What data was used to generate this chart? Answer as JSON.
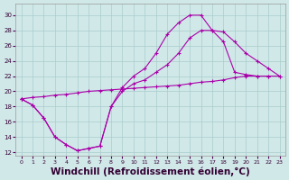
{
  "line1_x": [
    0,
    1,
    2,
    3,
    4,
    5,
    6,
    7,
    8,
    9,
    10,
    11,
    12,
    13,
    14,
    15,
    16,
    17,
    18,
    19,
    20,
    21,
    22,
    23
  ],
  "line1_y": [
    19.0,
    18.2,
    16.5,
    14.0,
    13.0,
    12.2,
    12.5,
    12.8,
    18.0,
    20.5,
    22.0,
    23.0,
    25.0,
    27.5,
    29.0,
    30.0,
    30.0,
    28.0,
    26.5,
    22.5,
    22.2,
    22.0,
    22.0,
    null
  ],
  "line2_x": [
    0,
    1,
    2,
    3,
    4,
    5,
    6,
    7,
    8,
    9,
    10,
    11,
    12,
    13,
    14,
    15,
    16,
    17,
    18,
    19,
    20,
    21,
    22,
    23
  ],
  "line2_y": [
    19.0,
    18.2,
    16.5,
    14.0,
    13.0,
    12.2,
    12.5,
    12.8,
    18.0,
    20.0,
    21.0,
    21.5,
    22.5,
    23.5,
    25.0,
    27.0,
    28.0,
    28.0,
    27.8,
    26.5,
    25.0,
    24.0,
    23.0,
    22.0
  ],
  "line3_x": [
    0,
    1,
    2,
    3,
    4,
    5,
    6,
    7,
    8,
    9,
    10,
    11,
    12,
    13,
    14,
    15,
    16,
    17,
    18,
    19,
    20,
    21,
    22,
    23
  ],
  "line3_y": [
    19.0,
    19.2,
    19.3,
    19.5,
    19.6,
    19.8,
    20.0,
    20.1,
    20.2,
    20.3,
    20.4,
    20.5,
    20.6,
    20.7,
    20.8,
    21.0,
    21.2,
    21.3,
    21.5,
    21.8,
    22.0,
    22.0,
    22.0,
    22.0
  ],
  "line_color": "#aa00aa",
  "bg_color": "#d0e8e8",
  "grid_color": "#aacccc",
  "xlabel": "Windchill (Refroidissement éolien,°C)",
  "xlabel_fontsize": 7.5,
  "xticks": [
    0,
    1,
    2,
    3,
    4,
    5,
    6,
    7,
    8,
    9,
    10,
    11,
    12,
    13,
    14,
    15,
    16,
    17,
    18,
    19,
    20,
    21,
    22,
    23
  ],
  "yticks": [
    12,
    14,
    16,
    18,
    20,
    22,
    24,
    26,
    28,
    30
  ],
  "ylim": [
    11.5,
    31.5
  ],
  "xlim": [
    -0.5,
    23.5
  ]
}
